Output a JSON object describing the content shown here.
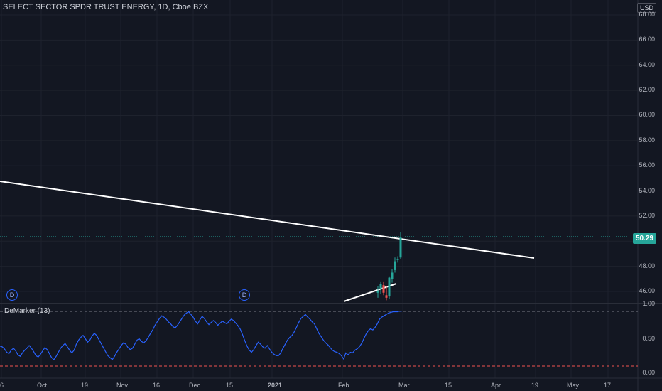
{
  "header": {
    "symbol": "SELECT SECTOR SPDR TRUST ENERGY, 1D, Cboe BZX",
    "currency": "USD"
  },
  "price_axis": {
    "ticks": [
      "68.00",
      "66.00",
      "64.00",
      "62.00",
      "60.00",
      "58.00",
      "56.00",
      "54.00",
      "52.00",
      "50.00",
      "48.00",
      "46.00"
    ],
    "last_price": "50.29"
  },
  "indicator": {
    "name": "DeMarker (13)",
    "ticks": [
      "1.00",
      "0.50",
      "0.00"
    ]
  },
  "time_axis": {
    "ticks": [
      "6",
      "Oct",
      "19",
      "Nov",
      "16",
      "Dec",
      "15",
      "2021",
      "Feb",
      "Mar",
      "15",
      "Apr",
      "19",
      "May",
      "17"
    ]
  },
  "badges": [
    "D",
    "D"
  ],
  "colors": {
    "background": "#131722",
    "up": "#26a69a",
    "down": "#ef5350",
    "indicator_line": "#2962ff",
    "overbought": "#787b86",
    "oversold": "#ef5350"
  },
  "chart_data": {
    "type": "candlestick",
    "ylim": [
      45,
      69
    ],
    "candles": [
      {
        "x": "Feb 16",
        "o": 45.9,
        "h": 46.4,
        "l": 45.5,
        "c": 46.0
      },
      {
        "x": "Feb 17",
        "o": 46.2,
        "h": 46.8,
        "l": 45.8,
        "c": 46.6
      },
      {
        "x": "Feb 18",
        "o": 46.5,
        "h": 46.8,
        "l": 45.7,
        "c": 45.9
      },
      {
        "x": "Feb 19",
        "o": 45.7,
        "h": 46.4,
        "l": 45.3,
        "c": 45.5
      },
      {
        "x": "Feb 22",
        "o": 45.6,
        "h": 47.2,
        "l": 45.4,
        "c": 47.1
      },
      {
        "x": "Feb 23",
        "o": 47.0,
        "h": 47.8,
        "l": 46.7,
        "c": 47.5
      },
      {
        "x": "Feb 24",
        "o": 47.7,
        "h": 48.7,
        "l": 47.5,
        "c": 48.4
      },
      {
        "x": "Feb 25",
        "o": 48.5,
        "h": 48.8,
        "l": 48.3,
        "c": 48.6
      },
      {
        "x": "Feb 26",
        "o": 48.7,
        "h": 50.7,
        "l": 48.6,
        "c": 50.29
      }
    ],
    "demarker": [
      0.39,
      0.38,
      0.35,
      0.3,
      0.28,
      0.33,
      0.36,
      0.32,
      0.26,
      0.24,
      0.29,
      0.33,
      0.36,
      0.4,
      0.36,
      0.31,
      0.25,
      0.23,
      0.27,
      0.32,
      0.37,
      0.34,
      0.28,
      0.22,
      0.19,
      0.24,
      0.3,
      0.36,
      0.4,
      0.43,
      0.38,
      0.33,
      0.29,
      0.33,
      0.42,
      0.48,
      0.52,
      0.55,
      0.5,
      0.45,
      0.48,
      0.54,
      0.58,
      0.55,
      0.49,
      0.43,
      0.37,
      0.31,
      0.25,
      0.22,
      0.19,
      0.24,
      0.3,
      0.35,
      0.4,
      0.44,
      0.42,
      0.37,
      0.34,
      0.36,
      0.42,
      0.48,
      0.5,
      0.46,
      0.44,
      0.47,
      0.52,
      0.58,
      0.63,
      0.7,
      0.75,
      0.8,
      0.84,
      0.82,
      0.79,
      0.75,
      0.72,
      0.68,
      0.66,
      0.7,
      0.75,
      0.8,
      0.85,
      0.88,
      0.9,
      0.86,
      0.82,
      0.76,
      0.72,
      0.78,
      0.83,
      0.8,
      0.75,
      0.71,
      0.74,
      0.77,
      0.74,
      0.7,
      0.73,
      0.76,
      0.74,
      0.72,
      0.76,
      0.79,
      0.77,
      0.73,
      0.69,
      0.64,
      0.56,
      0.47,
      0.39,
      0.33,
      0.3,
      0.34,
      0.4,
      0.45,
      0.42,
      0.38,
      0.36,
      0.4,
      0.35,
      0.3,
      0.27,
      0.25,
      0.25,
      0.29,
      0.36,
      0.42,
      0.48,
      0.52,
      0.55,
      0.6,
      0.67,
      0.74,
      0.8,
      0.83,
      0.86,
      0.82,
      0.79,
      0.75,
      0.72,
      0.65,
      0.58,
      0.53,
      0.48,
      0.44,
      0.41,
      0.37,
      0.33,
      0.31,
      0.3,
      0.28,
      0.25,
      0.2,
      0.29,
      0.26,
      0.3,
      0.29,
      0.33,
      0.35,
      0.38,
      0.43,
      0.5,
      0.57,
      0.62,
      0.65,
      0.63,
      0.67,
      0.72,
      0.79,
      0.82,
      0.84,
      0.86,
      0.88,
      0.89,
      0.9,
      0.9,
      0.9,
      0.91,
      0.91
    ],
    "overbought": 0.9,
    "oversold": 0.1
  }
}
